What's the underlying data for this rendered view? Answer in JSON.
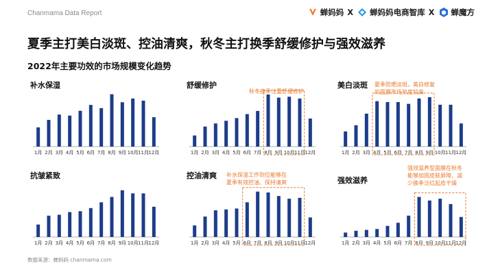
{
  "header": {
    "report_tag": "Chanmama Data Report",
    "brands": [
      "蝉妈妈",
      "蝉妈妈电商智库",
      "蝉魔方"
    ],
    "separator": "X",
    "colors": {
      "chanmama": "#f07a28",
      "zhiku": "#2a9bd8",
      "mofang": "#2a6fd8"
    }
  },
  "title": "夏季主打美白淡斑、控油清爽，秋冬主打换季舒缓修护与强效滋养",
  "subtitle": "2022年主要功效的市场规模变化趋势",
  "source": "数据来源：蝉妈妈 chanmama.com",
  "colors": {
    "bar": "#1c3d8a",
    "highlight": "#e8782b",
    "axis": "#999999"
  },
  "chart_data": [
    {
      "type": "bar",
      "title": "补水保湿",
      "categories": [
        "1月",
        "2月",
        "3月",
        "4月",
        "5月",
        "6月",
        "7月",
        "8月",
        "9月",
        "10月",
        "11月",
        "12月"
      ],
      "values": [
        36,
        50,
        60,
        58,
        67,
        78,
        72,
        98,
        83,
        90,
        86,
        55
      ],
      "ylim": [
        0,
        100
      ],
      "highlight": null
    },
    {
      "type": "bar",
      "title": "舒缓修护",
      "categories": [
        "1月",
        "2月",
        "3月",
        "4月",
        "5月",
        "6月",
        "7月",
        "8月",
        "9月",
        "10月",
        "11月",
        "12月"
      ],
      "values": [
        25,
        45,
        52,
        58,
        64,
        73,
        80,
        117,
        110,
        112,
        108,
        63
      ],
      "ylim": [
        0,
        120
      ],
      "highlight": {
        "from": 7,
        "to": 10,
        "text": [
          "秋冬换季注重舒缓修护"
        ]
      }
    },
    {
      "type": "bar",
      "title": "美白淡斑",
      "categories": [
        "1月",
        "2月",
        "3月",
        "4月",
        "5月",
        "6月",
        "7月",
        "8月",
        "9月",
        "10月",
        "11月",
        "12月"
      ],
      "values": [
        34,
        48,
        74,
        102,
        100,
        100,
        96,
        108,
        111,
        94,
        94,
        52
      ],
      "ylim": [
        0,
        120
      ],
      "highlight": {
        "from": 3,
        "to": 8,
        "text": [
          "夏季防晒淡斑，美白修复",
          "的面膜市场热度较高"
        ]
      }
    },
    {
      "type": "bar",
      "title": "抗皱紧致",
      "categories": [
        "1月",
        "2月",
        "3月",
        "4月",
        "5月",
        "6月",
        "7月",
        "8月",
        "9月",
        "10月",
        "11月",
        "12月"
      ],
      "values": [
        28,
        48,
        50,
        56,
        58,
        65,
        78,
        90,
        105,
        98,
        98,
        68
      ],
      "ylim": [
        0,
        120
      ],
      "highlight": null
    },
    {
      "type": "bar",
      "title": "控油清爽",
      "categories": [
        "1月",
        "2月",
        "3月",
        "4月",
        "5月",
        "6月",
        "7月",
        "8月",
        "9月",
        "10月",
        "11月",
        "12月"
      ],
      "values": [
        26,
        46,
        60,
        62,
        64,
        78,
        102,
        100,
        92,
        86,
        88,
        44
      ],
      "ylim": [
        0,
        120
      ],
      "highlight": {
        "from": 5,
        "to": 10,
        "text": [
          "补水保湿工作到位能够在",
          "夏季有效控油、保持清爽"
        ]
      }
    },
    {
      "type": "bar",
      "title": "强效滋养",
      "categories": [
        "1月",
        "2月",
        "3月",
        "4月",
        "5月",
        "6月",
        "7月",
        "8月",
        "9月",
        "10月",
        "11月",
        "12月"
      ],
      "values": [
        10,
        14,
        16,
        18,
        25,
        32,
        48,
        90,
        82,
        86,
        74,
        45
      ],
      "ylim": [
        0,
        120
      ],
      "highlight": {
        "from": 7,
        "to": 11,
        "text": [
          "强效滋养型面膜在秋冬",
          "能够加固皮肤屏障，减",
          "少换季泛红起皮干燥"
        ]
      }
    }
  ]
}
